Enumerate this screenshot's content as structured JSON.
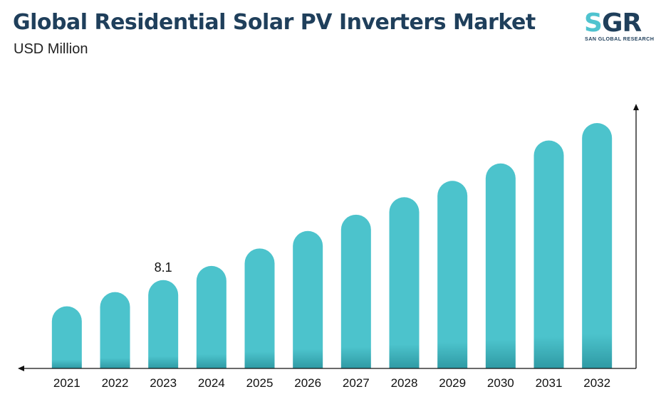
{
  "header": {
    "title": "Global Residential Solar PV Inverters Market",
    "subtitle": "USD Million"
  },
  "logo": {
    "mark": "SGR",
    "tagline": "SAN GLOBAL RESEARCH",
    "colors": {
      "s": "#4fc3cf",
      "gr": "#1f3f5b"
    }
  },
  "colors": {
    "bar": "#4cc3cc",
    "bar_bottom": "#2f9aa4",
    "axis": "#111111",
    "title": "#1f3f5b"
  },
  "chart_data": {
    "type": "bar",
    "title": "Global Residential Solar PV Inverters Market",
    "ylabel": "USD Million",
    "categories": [
      "2021",
      "2022",
      "2023",
      "2024",
      "2025",
      "2026",
      "2027",
      "2028",
      "2029",
      "2030",
      "2031",
      "2032"
    ],
    "values": [
      5.7,
      7.0,
      8.1,
      9.4,
      11.0,
      12.6,
      14.1,
      15.7,
      17.2,
      18.8,
      20.9,
      22.5
    ],
    "data_labels": [
      null,
      null,
      "8.1",
      null,
      null,
      null,
      null,
      null,
      null,
      null,
      null,
      null
    ],
    "ylim": [
      0,
      24
    ],
    "grid": false,
    "legend": "none"
  }
}
